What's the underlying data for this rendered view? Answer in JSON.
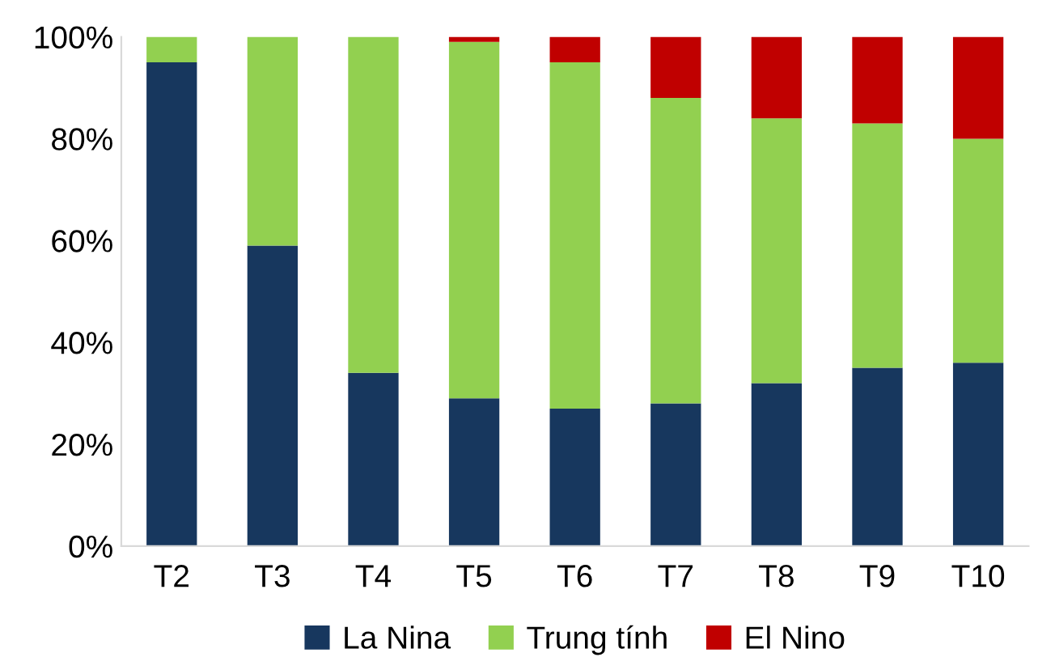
{
  "chart_data": {
    "type": "bar",
    "stacked": true,
    "categories": [
      "T2",
      "T3",
      "T4",
      "T5",
      "T6",
      "T7",
      "T8",
      "T9",
      "T10"
    ],
    "series": [
      {
        "name": "La Nina",
        "color": "#17375e",
        "values": [
          95,
          59,
          34,
          29,
          27,
          28,
          32,
          35,
          36
        ]
      },
      {
        "name": "Trung tính",
        "color": "#92d050",
        "values": [
          5,
          41,
          66,
          70,
          68,
          60,
          52,
          48,
          44
        ]
      },
      {
        "name": "El Nino",
        "color": "#c00000",
        "values": [
          0,
          0,
          0,
          1,
          5,
          12,
          16,
          17,
          20
        ]
      }
    ],
    "ylim": [
      0,
      100
    ],
    "yticks": [
      {
        "value": 0,
        "label": "0%"
      },
      {
        "value": 20,
        "label": "20%"
      },
      {
        "value": 40,
        "label": "40%"
      },
      {
        "value": 60,
        "label": "60%"
      },
      {
        "value": 80,
        "label": "80%"
      },
      {
        "value": 100,
        "label": "100%"
      }
    ],
    "grid": false,
    "legend": "bottom"
  }
}
